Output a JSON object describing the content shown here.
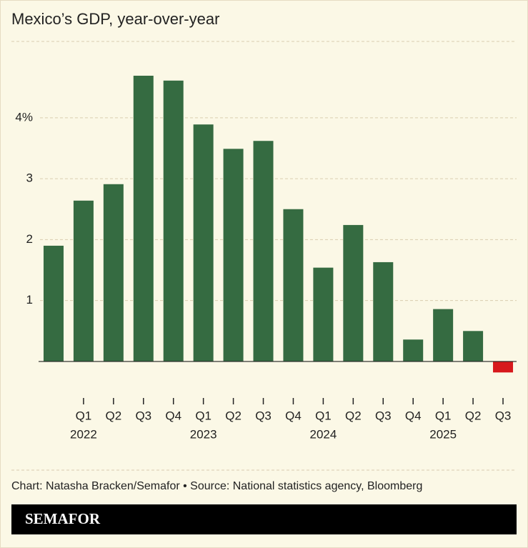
{
  "chart_data": {
    "type": "bar",
    "title": "Mexico’s GDP, year-over-year",
    "categories": [
      null,
      "Q1",
      "Q2",
      "Q3",
      "Q4",
      "Q1",
      "Q2",
      "Q3",
      "Q4",
      "Q1",
      "Q2",
      "Q3",
      "Q4",
      "Q1",
      "Q2",
      "Q3"
    ],
    "years": [
      null,
      "2022",
      null,
      null,
      null,
      "2023",
      null,
      null,
      null,
      "2024",
      null,
      null,
      null,
      "2025",
      null,
      null
    ],
    "values": [
      1.9,
      2.64,
      2.91,
      4.69,
      4.61,
      3.89,
      3.49,
      3.62,
      2.5,
      1.54,
      2.24,
      1.63,
      0.36,
      0.86,
      0.5,
      -0.18
    ],
    "color": "#356b41",
    "negative_color": "#d7191c",
    "ylim": [
      -0.2,
      4.8
    ],
    "yticks": [
      1,
      2,
      3,
      {
        "value": 4,
        "label": "4%"
      }
    ],
    "grid": true,
    "source": "Chart: Natasha Bracken/Semafor • Source: National statistics agency, Bloomberg",
    "brand": "SEMAFOR"
  }
}
